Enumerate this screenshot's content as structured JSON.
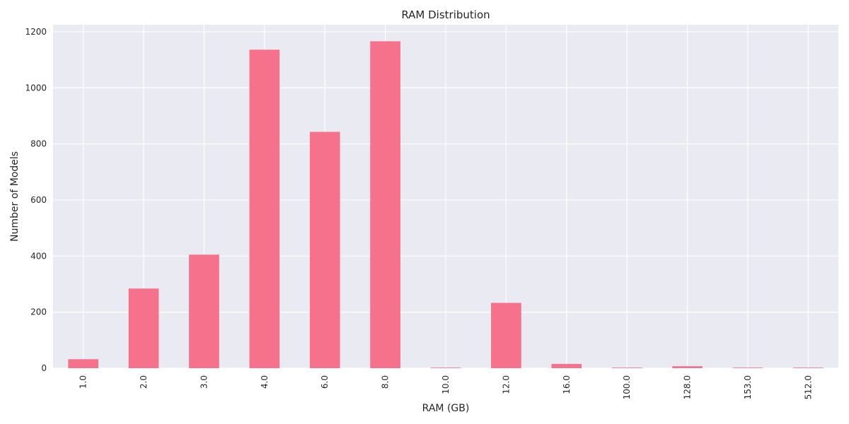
{
  "chart_data": {
    "type": "bar",
    "title": "RAM Distribution",
    "xlabel": "RAM (GB)",
    "ylabel": "Number of Models",
    "categories": [
      "1.0",
      "2.0",
      "3.0",
      "4.0",
      "6.0",
      "8.0",
      "10.0",
      "12.0",
      "16.0",
      "100.0",
      "128.0",
      "153.0",
      "512.0"
    ],
    "values": [
      32,
      284,
      405,
      1136,
      843,
      1166,
      2,
      233,
      15,
      2,
      7,
      2,
      2
    ],
    "ylim": [
      0,
      1225
    ],
    "yticks": [
      "0",
      "200",
      "400",
      "600",
      "800",
      "1000",
      "1200"
    ],
    "ytick_values": [
      0,
      200,
      400,
      600,
      800,
      1000,
      1200
    ],
    "grid": true,
    "bar_color": "#f6718b",
    "background_color": "#eaeaf2",
    "grid_color": "#ffffff"
  }
}
